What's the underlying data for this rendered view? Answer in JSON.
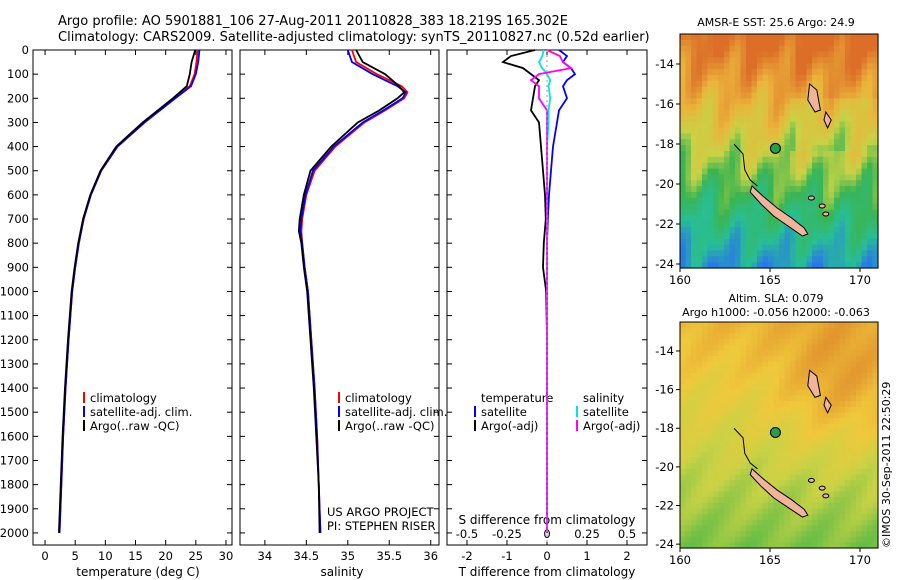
{
  "header": {
    "line1": "Argo profile: AO 5901881_106 27-Aug-2011 20110828_383 18.219S 165.302E",
    "line2": "Climatology: CARS2009. Satellite-adjusted climatology: synTS_20110827.nc (0.52d earlier)"
  },
  "timestamp": "©IMOS 30-Sep-2011 22:50:29",
  "colors": {
    "climatology": "#ff0000",
    "satellite": "#0000ff",
    "argo": "#000000",
    "salinity_satellite": "#00e5e5",
    "salinity_argo": "#ff00ff",
    "land": "#f0b49b"
  },
  "chart_data": [
    {
      "type": "line",
      "panel": "temperature",
      "xlabel": "temperature (deg C)",
      "xlim": [
        -2,
        31
      ],
      "xticks": [
        0,
        5,
        10,
        15,
        20,
        25,
        30
      ],
      "ylim": [
        0,
        2050
      ],
      "yticks": [
        0,
        100,
        200,
        300,
        400,
        500,
        600,
        700,
        800,
        900,
        1000,
        1100,
        1200,
        1300,
        1400,
        1500,
        1600,
        1700,
        1800,
        1900,
        2000
      ],
      "depth": [
        0,
        50,
        100,
        150,
        200,
        300,
        400,
        500,
        600,
        700,
        800,
        900,
        1000,
        1200,
        1400,
        1600,
        1800,
        2000
      ],
      "legend": [
        "climatology",
        "satellite-adj. clim.",
        "Argo(..raw -QC)"
      ],
      "series": [
        {
          "name": "climatology",
          "color": "#ff0000",
          "values": [
            25.3,
            25.1,
            24.8,
            24.0,
            21.5,
            16.5,
            12.0,
            9.3,
            7.6,
            6.4,
            5.6,
            5.0,
            4.5,
            3.9,
            3.4,
            3.0,
            2.7,
            2.4
          ]
        },
        {
          "name": "satellite-adj. clim.",
          "color": "#0000ff",
          "values": [
            25.6,
            25.4,
            25.0,
            24.2,
            21.6,
            16.5,
            12.0,
            9.3,
            7.6,
            6.4,
            5.6,
            5.0,
            4.5,
            3.9,
            3.4,
            3.0,
            2.7,
            2.4
          ]
        },
        {
          "name": "Argo(..raw -QC)",
          "color": "#000000",
          "values": [
            24.9,
            24.3,
            24.0,
            23.5,
            21.2,
            16.2,
            11.8,
            9.2,
            7.5,
            6.3,
            5.5,
            4.9,
            4.4,
            3.8,
            3.3,
            2.9,
            2.6,
            2.3
          ]
        }
      ]
    },
    {
      "type": "line",
      "panel": "salinity",
      "xlabel": "salinity",
      "xlim": [
        33.7,
        36.1
      ],
      "xticks": [
        34,
        34.5,
        35,
        35.5,
        36
      ],
      "ylim": [
        0,
        2050
      ],
      "depth": [
        0,
        50,
        100,
        150,
        175,
        200,
        250,
        300,
        400,
        500,
        600,
        700,
        750,
        800,
        900,
        1000,
        1200,
        1400,
        1600,
        1800,
        2000
      ],
      "legend": [
        "climatology",
        "satellite-adj. clim.",
        "Argo(..raw -QC)"
      ],
      "series": [
        {
          "name": "climatology",
          "color": "#ff0000",
          "values": [
            35.05,
            35.1,
            35.35,
            35.65,
            35.72,
            35.68,
            35.45,
            35.2,
            34.85,
            34.6,
            34.5,
            34.45,
            34.44,
            34.45,
            34.48,
            34.52,
            34.56,
            34.6,
            34.63,
            34.65,
            34.67
          ]
        },
        {
          "name": "satellite-adj. clim.",
          "color": "#0000ff",
          "values": [
            35.0,
            35.05,
            35.3,
            35.6,
            35.7,
            35.66,
            35.43,
            35.18,
            34.83,
            34.58,
            34.49,
            34.44,
            34.43,
            34.45,
            34.48,
            34.52,
            34.56,
            34.6,
            34.63,
            34.65,
            34.67
          ]
        },
        {
          "name": "Argo(..raw -QC)",
          "color": "#000000",
          "values": [
            35.1,
            35.18,
            35.45,
            35.62,
            35.68,
            35.6,
            35.38,
            35.12,
            34.8,
            34.55,
            34.47,
            34.42,
            34.41,
            34.44,
            34.47,
            34.51,
            34.55,
            34.59,
            34.62,
            34.65,
            34.66
          ]
        }
      ]
    },
    {
      "type": "line",
      "panel": "differences",
      "xlabel_top": "S difference from climatology",
      "xlabel": "T difference from climatology",
      "xlim": [
        -2.5,
        2.5
      ],
      "xticks": [
        -2,
        -1,
        0,
        1,
        2
      ],
      "xticklabels": [
        "-2",
        "-1",
        "0",
        "1",
        "2"
      ],
      "sticks": [
        -0.5,
        -0.25,
        0,
        0.25,
        0.5
      ],
      "sticklabels": [
        "-0.5",
        "-0.25",
        "0",
        "0.25",
        "0.5"
      ],
      "ylim": [
        0,
        2050
      ],
      "legend_temperature_header": "temperature",
      "legend_salinity_header": "salinity",
      "legend": [
        "satellite",
        "Argo(-adj)",
        "satellite",
        "Argo(-adj)"
      ],
      "depth": [
        0,
        25,
        50,
        75,
        100,
        125,
        150,
        200,
        250,
        300,
        400,
        500,
        600,
        700,
        800,
        900,
        1000,
        1200,
        1400,
        1600,
        1800,
        2000
      ],
      "series": [
        {
          "name": "satellite",
          "color": "#0000ff",
          "values": [
            0.3,
            0.5,
            0.4,
            0.6,
            0.7,
            0.5,
            0.4,
            0.5,
            0.3,
            0.25,
            0.15,
            0.1,
            0.05,
            0.02,
            0.0,
            0.0,
            0.0,
            0.0,
            0.0,
            0.0,
            0.0,
            0.0
          ]
        },
        {
          "name": "Argo(-adj)",
          "color": "#000000",
          "values": [
            -0.3,
            -0.9,
            -1.1,
            -0.6,
            -0.4,
            -0.2,
            -0.3,
            -0.35,
            -0.4,
            -0.2,
            -0.15,
            -0.1,
            -0.05,
            -0.03,
            -0.08,
            -0.1,
            -0.02,
            0.0,
            0.0,
            0.0,
            0.0,
            0.0
          ]
        },
        {
          "name": "satellite",
          "color": "#00e5e5",
          "values": [
            -0.02,
            -0.03,
            -0.05,
            -0.03,
            0.0,
            0.02,
            0.01,
            0.02,
            0.01,
            0.01,
            0.0,
            0.0,
            0.0,
            0.0,
            0.0,
            0.0,
            0.0,
            0.0,
            0.0,
            0.0,
            0.0,
            0.0
          ]
        },
        {
          "name": "Argo(-adj)",
          "color": "#ff00ff",
          "values": [
            0.0,
            0.08,
            0.1,
            0.15,
            -0.05,
            -0.1,
            -0.05,
            -0.05,
            0.0,
            0.0,
            0.0,
            0.0,
            0.0,
            0.0,
            0.0,
            0.0,
            0.0,
            0.0,
            0.0,
            0.0,
            0.0,
            0.0
          ]
        }
      ]
    },
    {
      "type": "heatmap",
      "panel": "sst-map",
      "title": "AMSR-E SST: 25.6 Argo: 24.9",
      "xlim": [
        160,
        171
      ],
      "ylim": [
        -24.2,
        -12.5
      ],
      "xticks": [
        160,
        165,
        170
      ],
      "yticks": [
        -14,
        -16,
        -18,
        -20,
        -22,
        -24
      ],
      "float": {
        "lon": 165.302,
        "lat": -18.219
      }
    },
    {
      "type": "heatmap",
      "panel": "sla-map",
      "title": "Altim. SLA: 0.079",
      "subtitle": "Argo h1000: -0.056 h2000: -0.063",
      "xlim": [
        160,
        171
      ],
      "ylim": [
        -24.2,
        -12.5
      ],
      "xticks": [
        160,
        165,
        170
      ],
      "yticks": [
        -14,
        -16,
        -18,
        -20,
        -22,
        -24
      ],
      "float": {
        "lon": 165.302,
        "lat": -18.219
      }
    }
  ],
  "labels": {
    "project": "US ARGO PROJECT",
    "pi": "PI: STEPHEN RISER"
  }
}
